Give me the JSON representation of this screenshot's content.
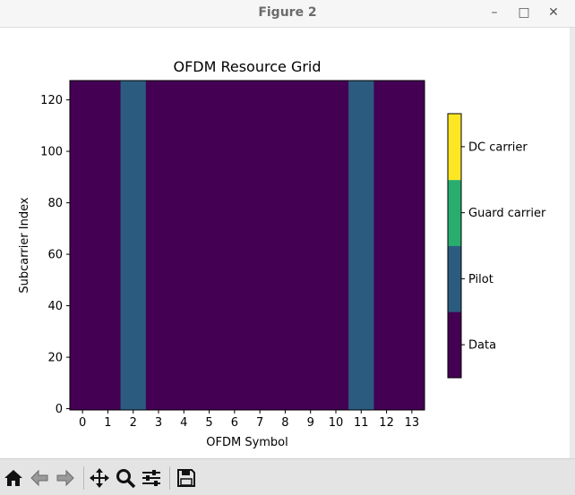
{
  "window": {
    "title": "Figure 2",
    "minimize_glyph": "–",
    "maximize_glyph": "□",
    "close_glyph": "✕"
  },
  "chart_data": {
    "type": "heatmap",
    "title": "OFDM Resource Grid",
    "xlabel": "OFDM Symbol",
    "ylabel": "Subcarrier Index",
    "x_ticks": [
      "0",
      "1",
      "2",
      "3",
      "4",
      "5",
      "6",
      "7",
      "8",
      "9",
      "10",
      "11",
      "12",
      "13"
    ],
    "y_ticks": [
      "0",
      "20",
      "40",
      "60",
      "80",
      "100",
      "120"
    ],
    "n_symbols": 14,
    "n_subcarriers": 128,
    "xlim": [
      -0.5,
      13.5
    ],
    "ylim": [
      -0.5,
      127.5
    ],
    "categories": [
      "Data",
      "Pilot",
      "Guard carrier",
      "DC carrier"
    ],
    "category_colors": [
      "#440154",
      "#2b5c7f",
      "#28ad6f",
      "#fde725"
    ],
    "columns": [
      {
        "symbol": 0,
        "category": "Data"
      },
      {
        "symbol": 1,
        "category": "Data"
      },
      {
        "symbol": 2,
        "category": "Pilot"
      },
      {
        "symbol": 3,
        "category": "Data"
      },
      {
        "symbol": 4,
        "category": "Data"
      },
      {
        "symbol": 5,
        "category": "Data"
      },
      {
        "symbol": 6,
        "category": "Data"
      },
      {
        "symbol": 7,
        "category": "Data"
      },
      {
        "symbol": 8,
        "category": "Data"
      },
      {
        "symbol": 9,
        "category": "Data"
      },
      {
        "symbol": 10,
        "category": "Data"
      },
      {
        "symbol": 11,
        "category": "Pilot"
      },
      {
        "symbol": 12,
        "category": "Data"
      },
      {
        "symbol": 13,
        "category": "Data"
      }
    ],
    "grid": false,
    "colorbar": "right"
  },
  "toolbar": {
    "icons": [
      "home-icon",
      "back-icon",
      "forward-icon",
      "pan-icon",
      "zoom-icon",
      "configure-subplots-icon",
      "save-icon"
    ]
  }
}
